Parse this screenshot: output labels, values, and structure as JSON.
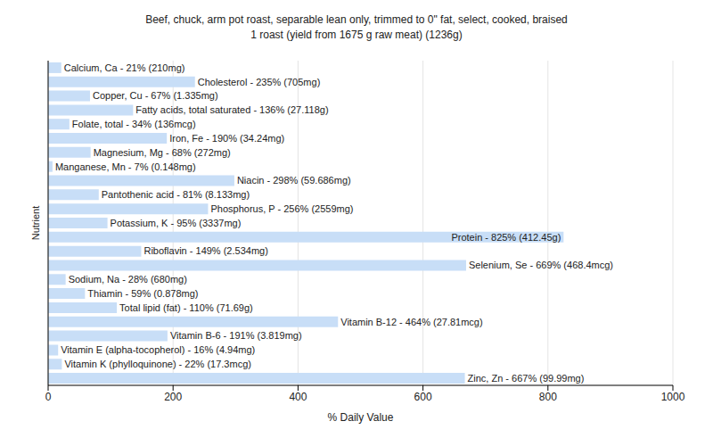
{
  "chart_data": {
    "type": "bar",
    "orientation": "horizontal",
    "title": "Beef, chuck, arm pot roast, separable lean only, trimmed to 0\" fat, select, cooked, braised",
    "subtitle": "1 roast (yield from 1675 g raw meat) (1236g)",
    "x_label": "% Daily Value",
    "y_label": "Nutrient",
    "categories": [
      "Calcium, Ca",
      "Cholesterol",
      "Copper, Cu",
      "Fatty acids, total saturated",
      "Folate, total",
      "Iron, Fe",
      "Magnesium, Mg",
      "Manganese, Mn",
      "Niacin",
      "Pantothenic acid",
      "Phosphorus, P",
      "Potassium, K",
      "Protein",
      "Riboflavin",
      "Selenium, Se",
      "Sodium, Na",
      "Thiamin",
      "Total lipid (fat)",
      "Vitamin B-12",
      "Vitamin B-6",
      "Vitamin E (alpha-tocopherol)",
      "Vitamin K (phylloquinone)",
      "Zinc, Zn"
    ],
    "values": [
      21,
      235,
      67,
      136,
      34,
      190,
      68,
      7,
      298,
      81,
      256,
      95,
      825,
      149,
      669,
      28,
      59,
      110,
      464,
      191,
      16,
      22,
      667
    ],
    "value_labels": [
      "Calcium, Ca - 21% (210mg)",
      "Cholesterol - 235% (705mg)",
      "Copper, Cu - 67% (1.335mg)",
      "Fatty acids, total saturated - 136% (27.118g)",
      "Folate, total - 34% (136mcg)",
      "Iron, Fe - 190% (34.24mg)",
      "Magnesium, Mg - 68% (272mg)",
      "Manganese, Mn - 7% (0.148mg)",
      "Niacin - 298% (59.686mg)",
      "Pantothenic acid - 81% (8.133mg)",
      "Phosphorus, P - 256% (2559mg)",
      "Potassium, K - 95% (3337mg)",
      "Protein - 825% (412.45g)",
      "Riboflavin - 149% (2.534mg)",
      "Selenium, Se - 669% (468.4mcg)",
      "Sodium, Na - 28% (680mg)",
      "Thiamin - 59% (0.878mg)",
      "Total lipid (fat) - 110% (71.69g)",
      "Vitamin B-12 - 464% (27.81mcg)",
      "Vitamin B-6 - 191% (3.819mg)",
      "Vitamin E (alpha-tocopherol) - 16% (4.94mg)",
      "Vitamin K (phylloquinone) - 22% (17.3mcg)",
      "Zinc, Zn - 667% (99.99mg)"
    ],
    "data_labels": true,
    "tick_labels": "x",
    "color": "#c8def7",
    "xlim": [
      0,
      1000
    ],
    "xticks": [
      0,
      200,
      400,
      600,
      800,
      1000
    ],
    "grid": true
  }
}
